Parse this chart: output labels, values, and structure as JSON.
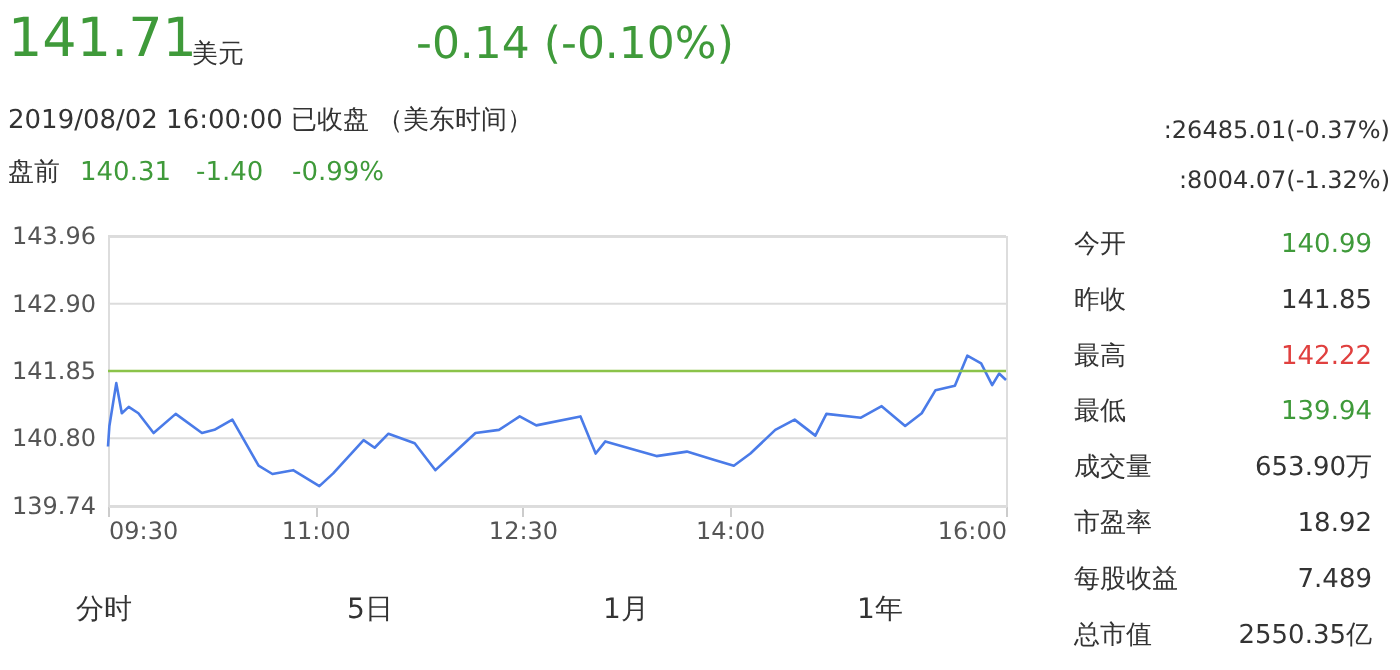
{
  "chart_data": {
    "type": "line",
    "title": "141.71",
    "annotations": [
      "美元",
      "-0.14 (-0.10%)",
      "2019/08/02 16:00:00  已收盘  （美东时间）",
      "盘前",
      "140.31",
      "-1.40",
      "-0.99%",
      ":26485.01(-0.37%)",
      ":8004.07(-1.32%)",
      "今开",
      "140.99",
      "昨收",
      "141.85",
      "最高",
      "142.22",
      "最低",
      "139.94",
      "成交量",
      "653.90万",
      "市盈率",
      "18.92",
      "每股收益",
      "7.489",
      "总市值",
      "2550.35亿",
      "分时",
      "5日",
      "1月",
      "1年"
    ],
    "x": [
      9.5,
      9.51,
      9.56,
      9.6,
      9.65,
      9.72,
      9.83,
      9.99,
      10.18,
      10.27,
      10.4,
      10.59,
      10.69,
      10.84,
      11.03,
      11.13,
      11.35,
      11.43,
      11.53,
      11.72,
      11.87,
      12.0,
      12.16,
      12.33,
      12.48,
      12.6,
      12.92,
      13.03,
      13.1,
      13.31,
      13.47,
      13.69,
      13.89,
      14.03,
      14.15,
      14.33,
      14.47,
      14.62,
      14.7,
      14.95,
      15.1,
      15.27,
      15.39,
      15.49,
      15.63,
      15.72,
      15.82,
      15.9,
      15.95,
      16.0
    ],
    "series": [
      {
        "color": "#4a7be8",
        "values": [
          140.67,
          140.99,
          141.66,
          141.19,
          141.29,
          141.19,
          140.88,
          141.18,
          140.88,
          140.93,
          141.09,
          140.37,
          140.24,
          140.3,
          140.05,
          140.25,
          140.77,
          140.65,
          140.87,
          140.72,
          140.3,
          140.56,
          140.88,
          140.93,
          141.14,
          141.0,
          141.14,
          140.56,
          140.75,
          140.62,
          140.52,
          140.59,
          140.46,
          140.37,
          140.56,
          140.93,
          141.09,
          140.84,
          141.18,
          141.12,
          141.3,
          140.99,
          141.19,
          141.55,
          141.62,
          142.09,
          141.97,
          141.63,
          141.81,
          141.71
        ]
      }
    ],
    "xlim": [
      9.5,
      16
    ],
    "ylim": [
      139.74,
      143.96
    ],
    "xticks": [
      {
        "value": 9.5,
        "label": "09:30"
      },
      {
        "value": 11,
        "label": "11:00"
      },
      {
        "value": 12.5,
        "label": "12:30"
      },
      {
        "value": 14,
        "label": "14:00"
      },
      {
        "value": 16,
        "label": "16:00"
      }
    ],
    "yticks": [
      139.74,
      {
        "value": 140.8,
        "label": "140.80"
      },
      {
        "value": 141.85,
        "label": "141.85"
      },
      {
        "value": 142.9,
        "label": "142.90"
      },
      143.96
    ],
    "ref_lines": [
      {
        "axis": "y",
        "value": 141.85,
        "color": "#8bc34a"
      }
    ],
    "grid": "y",
    "marker": "none",
    "line_style": "solid"
  }
}
